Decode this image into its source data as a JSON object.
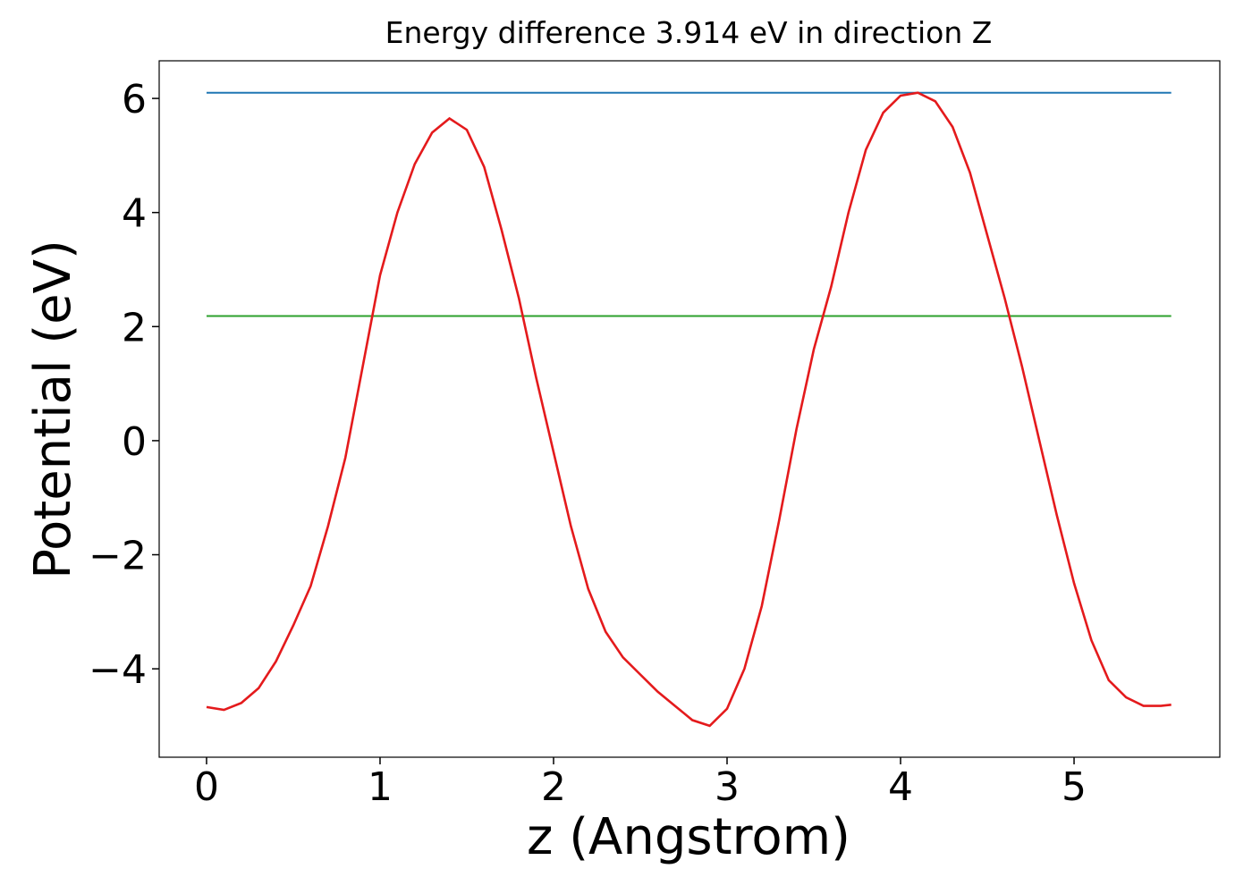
{
  "chart_data": {
    "type": "line",
    "title": "Energy difference 3.914 eV in direction Z",
    "x_label": "z (Angstrom)",
    "y_label": "Potential (eV)",
    "xlim": [
      -0.273,
      5.84
    ],
    "ylim": [
      -5.55,
      6.66
    ],
    "xticks": [
      0,
      1,
      2,
      3,
      4,
      5
    ],
    "yticks": [
      {
        "value": -4,
        "label": "−4"
      },
      {
        "value": -2,
        "label": "−2"
      },
      0,
      2,
      4,
      6
    ],
    "grid": false,
    "series": [
      {
        "color": "#1f77b4",
        "x": [
          0,
          5.56
        ],
        "values": [
          6.1,
          6.1
        ]
      },
      {
        "color": "#2ca02c",
        "x": [
          0,
          5.56
        ],
        "values": [
          2.186,
          2.186
        ]
      },
      {
        "color": "#e41a1c",
        "x": [
          0,
          0.1,
          0.2,
          0.3,
          0.4,
          0.5,
          0.6,
          0.7,
          0.8,
          0.9,
          1.0,
          1.1,
          1.2,
          1.3,
          1.4,
          1.5,
          1.6,
          1.7,
          1.8,
          1.9,
          2.0,
          2.1,
          2.2,
          2.3,
          2.4,
          2.5,
          2.6,
          2.7,
          2.8,
          2.9,
          3.0,
          3.1,
          3.2,
          3.3,
          3.4,
          3.5,
          3.6,
          3.7,
          3.8,
          3.9,
          4.0,
          4.1,
          4.2,
          4.3,
          4.4,
          4.5,
          4.6,
          4.7,
          4.8,
          4.9,
          5.0,
          5.1,
          5.2,
          5.3,
          5.4,
          5.5,
          5.56
        ],
        "values": [
          -4.67,
          -4.72,
          -4.6,
          -4.34,
          -3.87,
          -3.24,
          -2.55,
          -1.5,
          -0.3,
          1.3,
          2.9,
          4.0,
          4.85,
          5.4,
          5.65,
          5.45,
          4.8,
          3.7,
          2.5,
          1.1,
          -0.2,
          -1.5,
          -2.6,
          -3.35,
          -3.8,
          -4.1,
          -4.4,
          -4.65,
          -4.9,
          -5.0,
          -4.7,
          -4.0,
          -2.9,
          -1.4,
          0.2,
          1.6,
          2.7,
          4.0,
          5.1,
          5.75,
          6.05,
          6.1,
          5.95,
          5.5,
          4.7,
          3.6,
          2.5,
          1.3,
          0.0,
          -1.3,
          -2.5,
          -3.5,
          -4.2,
          -4.5,
          -4.65,
          -4.65,
          -4.63
        ]
      }
    ]
  }
}
